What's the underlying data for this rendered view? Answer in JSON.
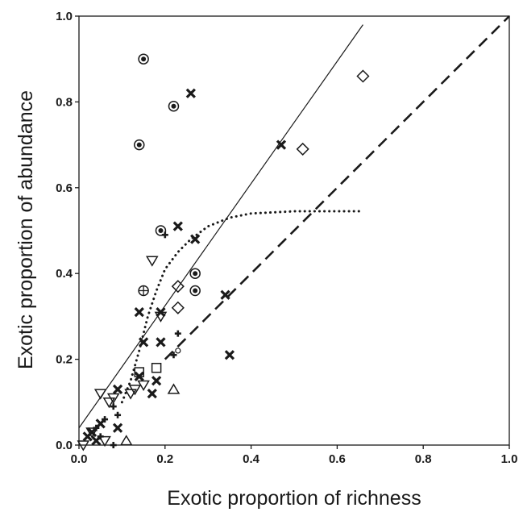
{
  "chart_data": {
    "type": "scatter",
    "title": "",
    "xlabel": "Exotic proportion of richness",
    "ylabel": "Exotic proportion of abundance",
    "xlim": [
      0,
      1.0
    ],
    "ylim": [
      0,
      1.0
    ],
    "x_ticks": [
      "0.0",
      "0.2",
      "0.4",
      "0.6",
      "0.8",
      "1.0"
    ],
    "y_ticks": [
      "0.0",
      "0.2",
      "0.4",
      "0.6",
      "0.8",
      "1.0"
    ],
    "grid": false,
    "legend": "none",
    "series": [
      {
        "marker": "circle-dot",
        "points": [
          [
            0.15,
            0.9
          ],
          [
            0.22,
            0.79
          ],
          [
            0.14,
            0.7
          ],
          [
            0.19,
            0.5
          ],
          [
            0.27,
            0.4
          ],
          [
            0.27,
            0.36
          ]
        ]
      },
      {
        "marker": "cross",
        "points": [
          [
            0.26,
            0.82
          ],
          [
            0.47,
            0.7
          ],
          [
            0.23,
            0.51
          ],
          [
            0.27,
            0.48
          ],
          [
            0.14,
            0.31
          ],
          [
            0.19,
            0.31
          ],
          [
            0.34,
            0.35
          ],
          [
            0.15,
            0.24
          ],
          [
            0.19,
            0.24
          ],
          [
            0.35,
            0.21
          ],
          [
            0.14,
            0.16
          ],
          [
            0.09,
            0.13
          ],
          [
            0.18,
            0.15
          ],
          [
            0.17,
            0.12
          ],
          [
            0.09,
            0.04
          ],
          [
            0.04,
            0.01
          ],
          [
            0.02,
            0.02
          ],
          [
            0.03,
            0.03
          ],
          [
            0.05,
            0.05
          ]
        ]
      },
      {
        "marker": "diamond",
        "points": [
          [
            0.66,
            0.86
          ],
          [
            0.52,
            0.69
          ],
          [
            0.23,
            0.37
          ],
          [
            0.23,
            0.32
          ]
        ]
      },
      {
        "marker": "triangle-down",
        "points": [
          [
            0.17,
            0.43
          ],
          [
            0.19,
            0.3
          ],
          [
            0.05,
            0.12
          ],
          [
            0.07,
            0.1
          ],
          [
            0.15,
            0.14
          ],
          [
            0.12,
            0.12
          ],
          [
            0.08,
            0.11
          ],
          [
            0.03,
            0.03
          ],
          [
            0.06,
            0.01
          ],
          [
            0.01,
            0.0
          ],
          [
            0.13,
            0.13
          ]
        ]
      },
      {
        "marker": "triangle-up",
        "points": [
          [
            0.22,
            0.13
          ],
          [
            0.11,
            0.01
          ]
        ]
      },
      {
        "marker": "square",
        "points": [
          [
            0.14,
            0.17
          ],
          [
            0.18,
            0.18
          ]
        ]
      },
      {
        "marker": "circle-plus",
        "points": [
          [
            0.15,
            0.36
          ]
        ]
      },
      {
        "marker": "plus",
        "points": [
          [
            0.2,
            0.49
          ],
          [
            0.23,
            0.26
          ],
          [
            0.22,
            0.21
          ],
          [
            0.08,
            0.09
          ],
          [
            0.09,
            0.07
          ],
          [
            0.06,
            0.06
          ],
          [
            0.04,
            0.04
          ],
          [
            0.08,
            0.0
          ],
          [
            0.05,
            0.02
          ]
        ]
      },
      {
        "marker": "circle-small",
        "points": [
          [
            0.23,
            0.22
          ]
        ]
      }
    ],
    "lines": [
      {
        "style": "solid",
        "type": "linear",
        "points": [
          [
            0.0,
            0.04
          ],
          [
            0.66,
            0.98
          ]
        ]
      },
      {
        "style": "dashed",
        "type": "linear",
        "points": [
          [
            0.2,
            0.2
          ],
          [
            1.0,
            1.0
          ]
        ]
      },
      {
        "style": "dotted",
        "type": "curve",
        "points": [
          [
            0.1,
            0.1
          ],
          [
            0.12,
            0.15
          ],
          [
            0.14,
            0.22
          ],
          [
            0.16,
            0.3
          ],
          [
            0.18,
            0.36
          ],
          [
            0.2,
            0.41
          ],
          [
            0.23,
            0.45
          ],
          [
            0.26,
            0.48
          ],
          [
            0.3,
            0.51
          ],
          [
            0.35,
            0.53
          ],
          [
            0.4,
            0.54
          ],
          [
            0.5,
            0.545
          ],
          [
            0.66,
            0.545
          ]
        ]
      }
    ]
  }
}
